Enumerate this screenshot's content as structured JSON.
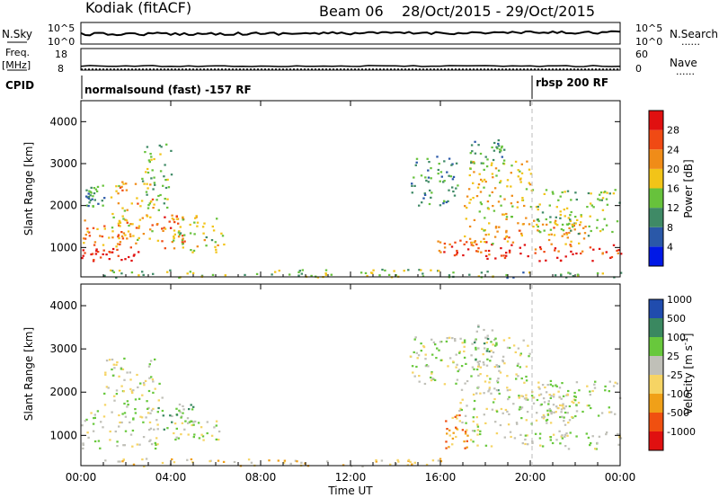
{
  "header": {
    "station": "Kodiak (fitACF)",
    "beam": "Beam 06",
    "date_range": "28/Oct/2015 - 29/Oct/2015"
  },
  "panels": {
    "nsky": {
      "label": "N.Sky",
      "top_tick": "10^5",
      "bottom_tick": "10^0"
    },
    "nsearch": {
      "label": "N.Search",
      "top_tick": "10^5",
      "bottom_tick": "10^0"
    },
    "freq": {
      "label_line1": "Freq.",
      "label_line2": "[MHz]",
      "top_tick": "18",
      "bottom_tick": "8"
    },
    "nave": {
      "label": "Nave",
      "top_tick": "60",
      "bottom_tick": "0"
    },
    "cpid": {
      "label": "CPID",
      "mode1": "normalsound (fast) -157 RF",
      "mode2": "rbsp 200 RF"
    }
  },
  "legend_line": "......",
  "colors": {
    "power": [
      "#0018e6",
      "#2a58a8",
      "#3f8a66",
      "#67c23c",
      "#f2c418",
      "#f08c18",
      "#f04a14",
      "#e01010"
    ],
    "velocity": [
      "#e01010",
      "#f05010",
      "#f0a018",
      "#f6d464",
      "#c0c0b8",
      "#68c83c",
      "#3a8860",
      "#204cae"
    ]
  },
  "chart_data": [
    {
      "type": "heatmap",
      "ylabel": "Slant Range [km]",
      "yticks": [
        "1000",
        "2000",
        "3000",
        "4000"
      ],
      "ylim": [
        300,
        4500
      ],
      "colorbar": {
        "label": "Power [dB]",
        "ticks": [
          "4",
          "8",
          "12",
          "16",
          "20",
          "24",
          "28"
        ]
      },
      "regions": [
        {
          "t": [
            0.0,
            2.6
          ],
          "r": [
            700,
            1000
          ],
          "level": 6.8
        },
        {
          "t": [
            0.0,
            2.2
          ],
          "r": [
            1000,
            1700
          ],
          "level": 5.2
        },
        {
          "t": [
            1.2,
            3.2
          ],
          "r": [
            1100,
            2600
          ],
          "level": 4.4
        },
        {
          "t": [
            3.2,
            4.6
          ],
          "r": [
            1000,
            1800
          ],
          "level": 5.6
        },
        {
          "t": [
            4.0,
            6.4
          ],
          "r": [
            900,
            1800
          ],
          "level": 3.6
        },
        {
          "t": [
            2.6,
            4.0
          ],
          "r": [
            1900,
            3500
          ],
          "level": 3.0
        },
        {
          "t": [
            0.0,
            1.0
          ],
          "r": [
            2000,
            2500
          ],
          "level": 2.2
        },
        {
          "t": [
            1.0,
            16.0
          ],
          "r": [
            300,
            500
          ],
          "level": 2.8
        },
        {
          "t": [
            16.0,
            24.0
          ],
          "r": [
            300,
            450
          ],
          "level": 2.6
        },
        {
          "t": [
            15.8,
            18.2
          ],
          "r": [
            800,
            1200
          ],
          "level": 6.0
        },
        {
          "t": [
            18.0,
            24.0
          ],
          "r": [
            700,
            1100
          ],
          "level": 6.5
        },
        {
          "t": [
            17.0,
            22.5
          ],
          "r": [
            1100,
            1700
          ],
          "level": 4.6
        },
        {
          "t": [
            17.0,
            20.0
          ],
          "r": [
            1700,
            3100
          ],
          "level": 4.2
        },
        {
          "t": [
            14.6,
            16.8
          ],
          "r": [
            2000,
            3200
          ],
          "level": 2.2
        },
        {
          "t": [
            20.0,
            24.0
          ],
          "r": [
            1300,
            2400
          ],
          "level": 3.2
        },
        {
          "t": [
            17.2,
            18.8
          ],
          "r": [
            3000,
            3600
          ],
          "level": 2.4
        }
      ]
    },
    {
      "type": "heatmap",
      "ylabel": "Slant Range [km]",
      "yticks": [
        "1000",
        "2000",
        "3000",
        "4000"
      ],
      "ylim": [
        300,
        4500
      ],
      "xlabel": "Time UT",
      "xticks": [
        "00:00",
        "04:00",
        "08:00",
        "12:00",
        "16:00",
        "20:00",
        "00:00"
      ],
      "xlim": [
        0,
        24
      ],
      "colorbar": {
        "label": "Velocity [m s^-1]",
        "ticks": [
          "-1000",
          "-500",
          "-100",
          "-25",
          "25",
          "100",
          "500",
          "1000"
        ]
      },
      "regions": [
        {
          "t": [
            0.0,
            3.4
          ],
          "r": [
            700,
            1700
          ],
          "level": 4
        },
        {
          "t": [
            1.0,
            3.6
          ],
          "r": [
            1700,
            2800
          ],
          "level": 4
        },
        {
          "t": [
            3.4,
            5.0
          ],
          "r": [
            1150,
            1750
          ],
          "level": 5
        },
        {
          "t": [
            4.0,
            6.2
          ],
          "r": [
            900,
            1400
          ],
          "level": 4
        },
        {
          "t": [
            1.0,
            16.0
          ],
          "r": [
            300,
            480
          ],
          "level": 3
        },
        {
          "t": [
            16.2,
            17.2
          ],
          "r": [
            700,
            1500
          ],
          "level": 2
        },
        {
          "t": [
            17.2,
            24.0
          ],
          "r": [
            700,
            1150
          ],
          "level": 4
        },
        {
          "t": [
            16.8,
            22.0
          ],
          "r": [
            1200,
            2200
          ],
          "level": 4
        },
        {
          "t": [
            17.4,
            18.6
          ],
          "r": [
            1900,
            3600
          ],
          "level": 5
        },
        {
          "t": [
            14.6,
            20.0
          ],
          "r": [
            2200,
            3300
          ],
          "level": 4
        },
        {
          "t": [
            20.0,
            24.0
          ],
          "r": [
            1400,
            2300
          ],
          "level": 4
        }
      ]
    }
  ]
}
